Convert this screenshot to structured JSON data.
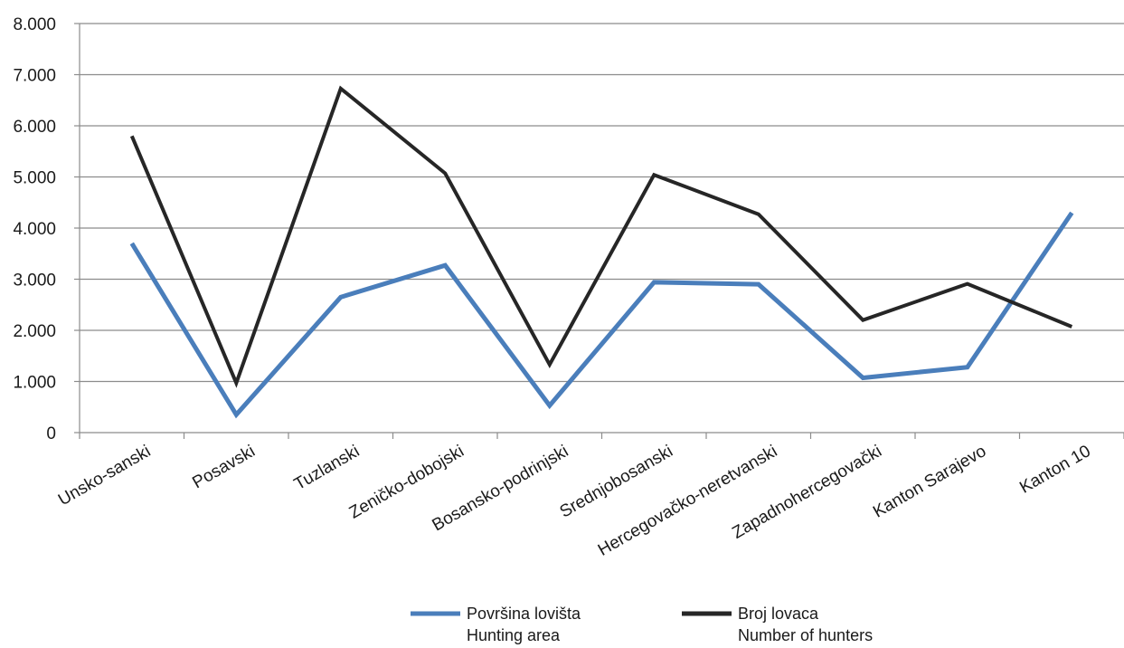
{
  "chart_data": {
    "type": "line",
    "categories": [
      "Unsko-sanski",
      "Posavski",
      "Tuzlanski",
      "Zeničko-dobojski",
      "Bosansko-podrinjski",
      "Srednjobosanski",
      "Hercegovačko-neretvanski",
      "Zapadnohercegovački",
      "Kanton Sarajevo",
      "Kanton 10"
    ],
    "series": [
      {
        "name": "Površina lovišta",
        "name_en": "Hunting area",
        "color": "#4a7ebb",
        "values": [
          3700,
          350,
          2650,
          3270,
          530,
          2940,
          2900,
          1070,
          1280,
          4300
        ]
      },
      {
        "name": "Broj lovaca",
        "name_en": "Number of hunters",
        "color": "#262626",
        "values": [
          5800,
          970,
          6730,
          5070,
          1330,
          5040,
          4270,
          2200,
          2910,
          2070
        ]
      }
    ],
    "y_ticks": [
      "0",
      "1.000",
      "2.000",
      "3.000",
      "4.000",
      "5.000",
      "6.000",
      "7.000",
      "8.000"
    ],
    "ylim": [
      0,
      8000
    ],
    "grid": true,
    "legend_position": "bottom"
  }
}
